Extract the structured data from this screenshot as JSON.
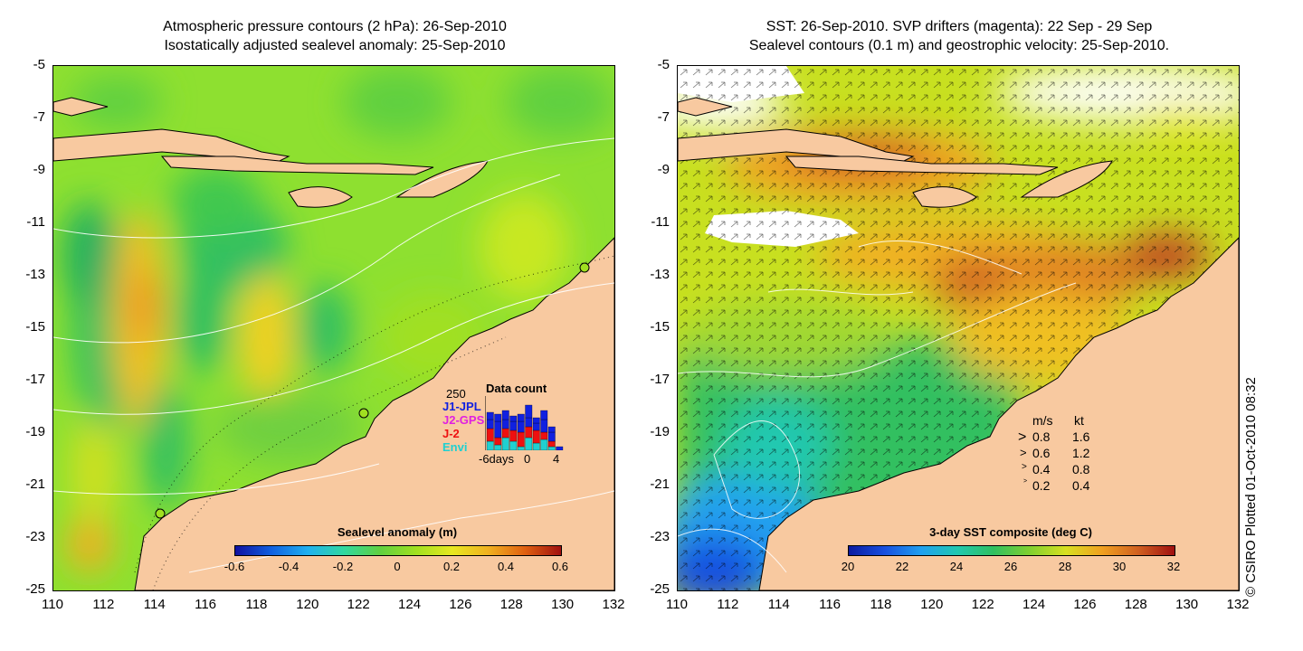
{
  "left_panel": {
    "title_line1": "Atmospheric pressure contours (2 hPa): 26-Sep-2010",
    "title_line2": "Isostatically adjusted sealevel anomaly: 25-Sep-2010",
    "y_ticks": [
      "-5",
      "-7",
      "-9",
      "-11",
      "-13",
      "-15",
      "-17",
      "-19",
      "-21",
      "-23",
      "-25"
    ],
    "x_ticks": [
      "110",
      "112",
      "114",
      "116",
      "118",
      "120",
      "122",
      "124",
      "126",
      "128",
      "130",
      "132"
    ],
    "colorbar": {
      "title": "Sealevel anomaly (m)",
      "ticks": [
        "-0.6",
        "-0.4",
        "-0.2",
        "0",
        "0.2",
        "0.4",
        "0.6"
      ]
    },
    "data_count": {
      "title": "Data count",
      "max_label": "250",
      "series": [
        {
          "name": "J1-JPL",
          "color": "#1020e0"
        },
        {
          "name": "J2-GPS",
          "color": "#e020e0"
        },
        {
          "name": "J-2",
          "color": "#ee1010"
        },
        {
          "name": "Envi",
          "color": "#20d0d0"
        }
      ],
      "x_labels": [
        "-6days",
        "0",
        "4"
      ]
    }
  },
  "right_panel": {
    "title_line1": "SST: 26-Sep-2010. SVP drifters (magenta): 22 Sep - 29 Sep",
    "title_line2": "Sealevel contours (0.1 m) and geostrophic velocity: 25-Sep-2010.",
    "y_ticks": [
      "-5",
      "-7",
      "-9",
      "-11",
      "-13",
      "-15",
      "-17",
      "-19",
      "-21",
      "-23",
      "-25"
    ],
    "x_ticks": [
      "110",
      "112",
      "114",
      "116",
      "118",
      "120",
      "122",
      "124",
      "126",
      "128",
      "130",
      "132"
    ],
    "colorbar": {
      "title": "3-day SST composite (deg C)",
      "ticks": [
        "20",
        "22",
        "24",
        "26",
        "28",
        "30",
        "32"
      ]
    },
    "velocity_legend": {
      "header_ms": "m/s",
      "header_kt": "kt",
      "rows": [
        {
          "ms": "0.8",
          "kt": "1.6"
        },
        {
          "ms": "0.6",
          "kt": "1.2"
        },
        {
          "ms": "0.4",
          "kt": "0.8"
        },
        {
          "ms": "0.2",
          "kt": "0.4"
        }
      ]
    }
  },
  "credit": "© CSIRO Plotted 01-Oct-2010 08:32",
  "colors": {
    "land": "#f8c9a0",
    "sla_ramp": [
      "#1010a0",
      "#1060e0",
      "#20b0f0",
      "#30d8a0",
      "#60d040",
      "#a0e020",
      "#e8e820",
      "#f0b020",
      "#e06010",
      "#a01010"
    ],
    "sst_ramp": [
      "#0a1aa0",
      "#1850e0",
      "#20a0f0",
      "#20c8b0",
      "#30c060",
      "#80d030",
      "#d8e020",
      "#f0a020",
      "#d06020",
      "#a01010"
    ]
  }
}
